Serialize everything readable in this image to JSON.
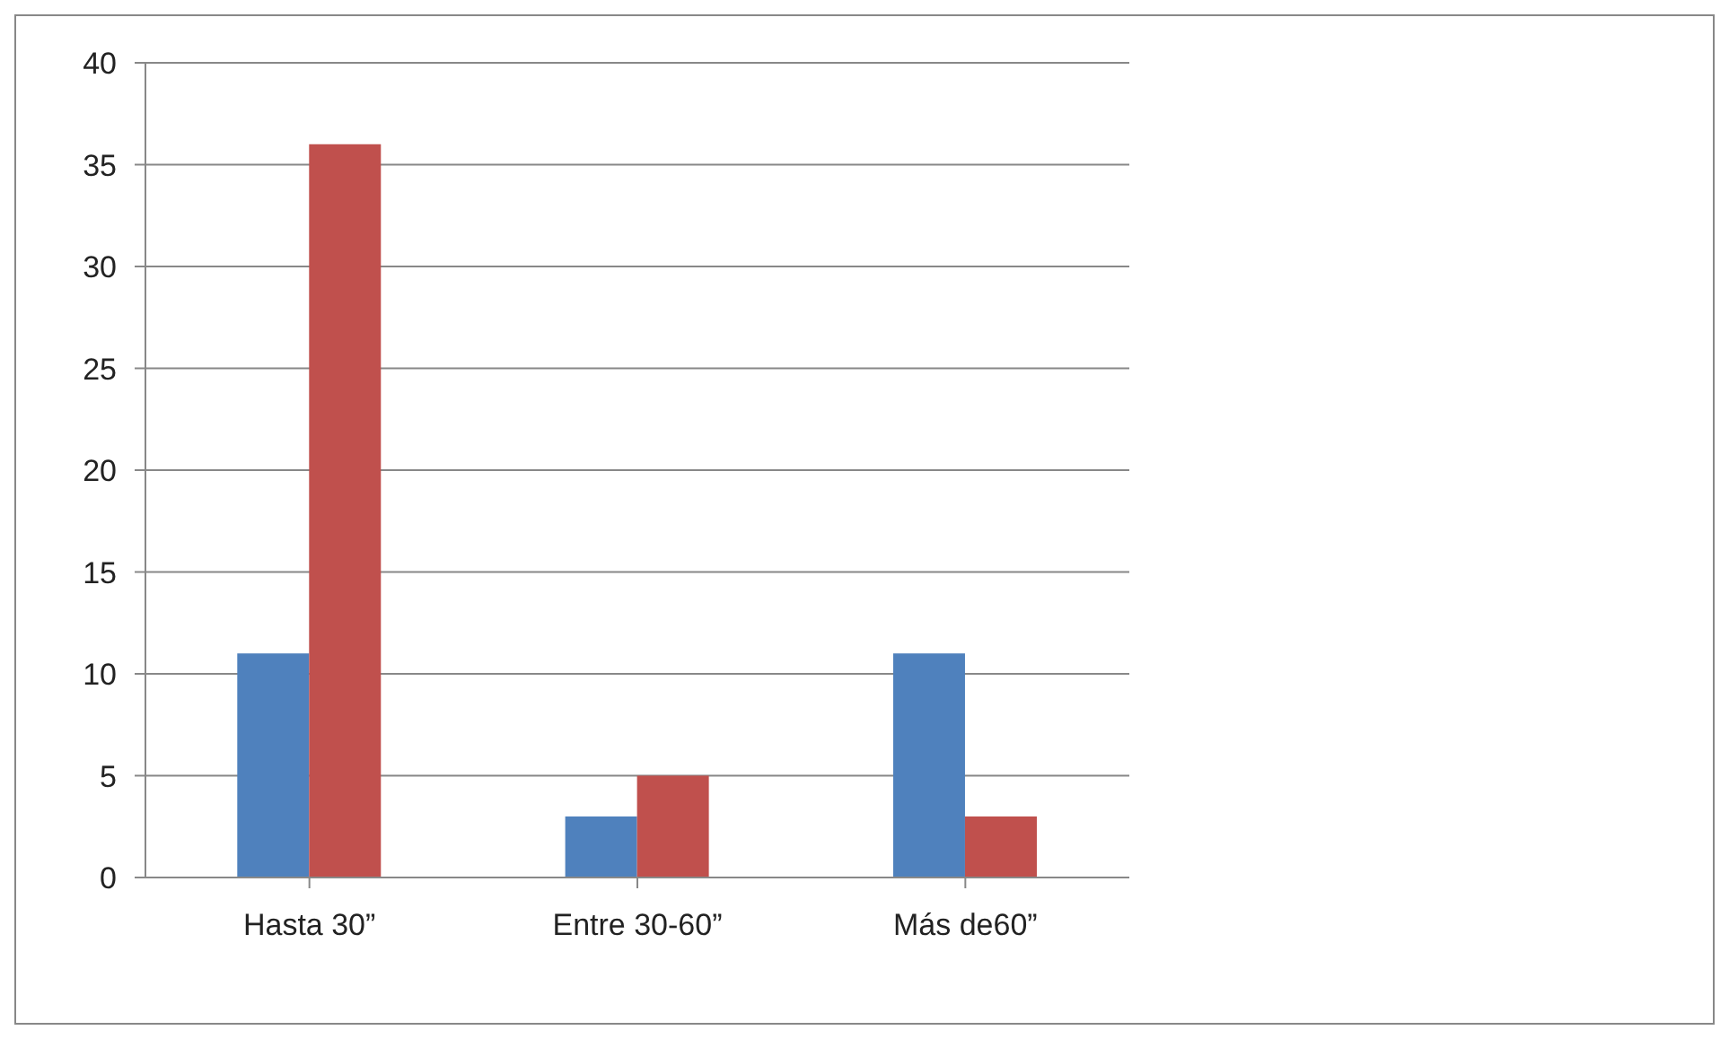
{
  "chart_data": {
    "type": "bar",
    "categories": [
      "Hasta 30”",
      "Entre 30-60”",
      "Más de60”"
    ],
    "series": [
      {
        "color": "#4f81bd",
        "values": [
          11,
          3,
          11
        ]
      },
      {
        "color": "#c0504d",
        "values": [
          36,
          5,
          3
        ]
      }
    ],
    "ylim": [
      0,
      40
    ],
    "yticks": [
      0,
      5,
      10,
      15,
      20,
      25,
      30,
      35,
      40
    ],
    "grid": "y"
  }
}
